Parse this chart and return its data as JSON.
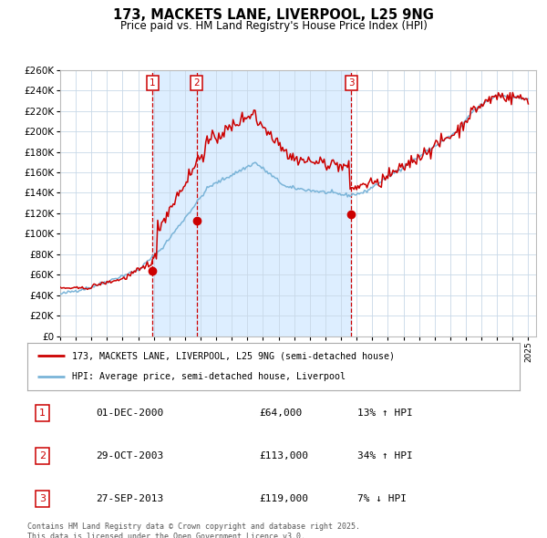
{
  "title": "173, MACKETS LANE, LIVERPOOL, L25 9NG",
  "subtitle": "Price paid vs. HM Land Registry's House Price Index (HPI)",
  "legend_line1": "173, MACKETS LANE, LIVERPOOL, L25 9NG (semi-detached house)",
  "legend_line2": "HPI: Average price, semi-detached house, Liverpool",
  "transactions": [
    {
      "num": 1,
      "date": "01-DEC-2000",
      "price": 64000,
      "pct": "13%",
      "dir": "↑"
    },
    {
      "num": 2,
      "date": "29-OCT-2003",
      "price": 113000,
      "pct": "34%",
      "dir": "↑"
    },
    {
      "num": 3,
      "date": "27-SEP-2013",
      "price": 119000,
      "pct": "7%",
      "dir": "↓"
    }
  ],
  "footnote": "Contains HM Land Registry data © Crown copyright and database right 2025.\nThis data is licensed under the Open Government Licence v3.0.",
  "ylim": [
    0,
    260000
  ],
  "ytick_step": 20000,
  "background_color": "#ffffff",
  "grid_color": "#c8d8e8",
  "hpi_color": "#7ab4d8",
  "price_color": "#cc0000",
  "shade_color": "#ddeeff",
  "vline_color": "#cc0000",
  "dot_color": "#cc0000",
  "marker_box_color": "#cc0000",
  "marker_text_color": "#cc0000"
}
